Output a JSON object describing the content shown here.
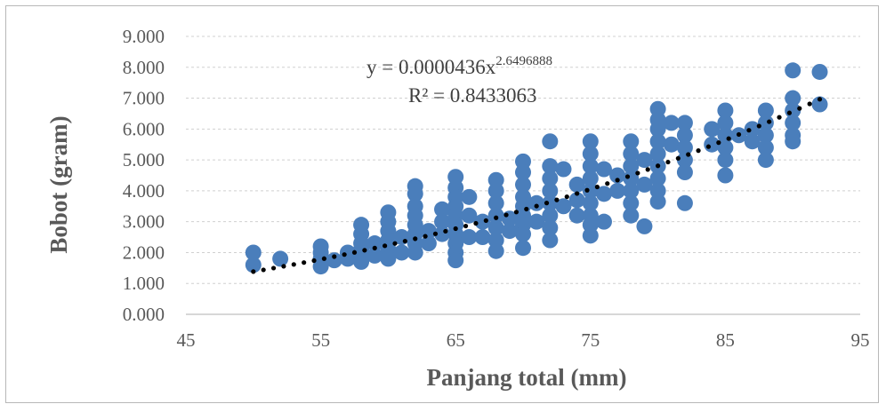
{
  "chart_data": {
    "type": "scatter",
    "title": "",
    "xlabel": "Panjang total (mm)",
    "ylabel": "Bobot (gram)",
    "xlim": [
      45,
      95
    ],
    "ylim": [
      0,
      9
    ],
    "x_ticks": [
      45,
      55,
      65,
      75,
      85,
      95
    ],
    "x_tick_labels": [
      "45",
      "55",
      "65",
      "75",
      "85",
      "95"
    ],
    "y_ticks": [
      0,
      1,
      2,
      3,
      4,
      5,
      6,
      7,
      8,
      9
    ],
    "y_tick_labels": [
      "0.000",
      "1.000",
      "2.000",
      "3.000",
      "4.000",
      "5.000",
      "6.000",
      "7.000",
      "8.000",
      "9.000"
    ],
    "grid": "horizontal-dashed",
    "legend": "none",
    "marker_color": "#4a7ebb",
    "trendline_color": "#000000",
    "trendline": {
      "type": "power",
      "coefficient": 4.36e-05,
      "exponent": 2.6496888,
      "x_range": [
        50,
        92
      ],
      "equation_label": "y = 0.0000436x",
      "equation_exponent": "2.6496888",
      "r2_label": "R² = 0.8433063"
    },
    "points": [
      [
        50,
        2.0
      ],
      [
        50,
        1.6
      ],
      [
        52,
        1.8
      ],
      [
        55,
        2.2
      ],
      [
        55,
        2.0
      ],
      [
        55,
        1.8
      ],
      [
        55,
        1.55
      ],
      [
        56,
        1.75
      ],
      [
        57,
        1.8
      ],
      [
        57,
        2.0
      ],
      [
        58,
        2.9
      ],
      [
        58,
        2.6
      ],
      [
        58,
        2.3
      ],
      [
        58,
        2.1
      ],
      [
        58,
        1.9
      ],
      [
        58,
        1.7
      ],
      [
        59,
        2.3
      ],
      [
        59,
        1.9
      ],
      [
        60,
        3.3
      ],
      [
        60,
        3.0
      ],
      [
        60,
        2.7
      ],
      [
        60,
        2.4
      ],
      [
        60,
        2.1
      ],
      [
        60,
        1.8
      ],
      [
        61,
        2.5
      ],
      [
        61,
        2.0
      ],
      [
        62,
        4.15
      ],
      [
        62,
        3.9
      ],
      [
        62,
        3.5
      ],
      [
        62,
        3.2
      ],
      [
        62,
        2.9
      ],
      [
        62,
        2.6
      ],
      [
        62,
        2.3
      ],
      [
        62,
        2.0
      ],
      [
        63,
        2.7
      ],
      [
        63,
        2.3
      ],
      [
        64,
        3.4
      ],
      [
        64,
        3.0
      ],
      [
        64,
        2.6
      ],
      [
        65,
        4.45
      ],
      [
        65,
        4.1
      ],
      [
        65,
        3.8
      ],
      [
        65,
        3.5
      ],
      [
        65,
        3.2
      ],
      [
        65,
        2.9
      ],
      [
        65,
        2.6
      ],
      [
        65,
        2.3
      ],
      [
        65,
        2.0
      ],
      [
        65,
        1.75
      ],
      [
        66,
        3.8
      ],
      [
        66,
        3.2
      ],
      [
        66,
        2.5
      ],
      [
        67,
        3.0
      ],
      [
        67,
        2.5
      ],
      [
        68,
        4.35
      ],
      [
        68,
        4.0
      ],
      [
        68,
        3.6
      ],
      [
        68,
        3.2
      ],
      [
        68,
        2.8
      ],
      [
        68,
        2.4
      ],
      [
        68,
        2.05
      ],
      [
        69,
        3.1
      ],
      [
        69,
        2.7
      ],
      [
        70,
        4.95
      ],
      [
        70,
        4.6
      ],
      [
        70,
        4.2
      ],
      [
        70,
        3.8
      ],
      [
        70,
        3.5
      ],
      [
        70,
        3.2
      ],
      [
        70,
        2.9
      ],
      [
        70,
        2.6
      ],
      [
        70,
        2.15
      ],
      [
        71,
        3.6
      ],
      [
        71,
        3.0
      ],
      [
        72,
        5.6
      ],
      [
        72,
        4.8
      ],
      [
        72,
        4.4
      ],
      [
        72,
        4.0
      ],
      [
        72,
        3.6
      ],
      [
        72,
        3.2
      ],
      [
        72,
        2.8
      ],
      [
        72,
        2.4
      ],
      [
        73,
        4.7
      ],
      [
        73,
        3.5
      ],
      [
        74,
        4.2
      ],
      [
        74,
        3.7
      ],
      [
        74,
        3.2
      ],
      [
        75,
        5.6
      ],
      [
        75,
        5.2
      ],
      [
        75,
        4.8
      ],
      [
        75,
        4.4
      ],
      [
        75,
        4.0
      ],
      [
        75,
        3.6
      ],
      [
        75,
        3.2
      ],
      [
        75,
        2.9
      ],
      [
        75,
        2.55
      ],
      [
        76,
        4.7
      ],
      [
        76,
        3.9
      ],
      [
        76,
        3.0
      ],
      [
        77,
        4.5
      ],
      [
        77,
        4.0
      ],
      [
        78,
        5.6
      ],
      [
        78,
        5.2
      ],
      [
        78,
        4.8
      ],
      [
        78,
        4.4
      ],
      [
        78,
        4.0
      ],
      [
        78,
        3.6
      ],
      [
        78,
        3.2
      ],
      [
        79,
        5.0
      ],
      [
        79,
        4.2
      ],
      [
        79,
        2.85
      ],
      [
        80,
        6.65
      ],
      [
        80,
        6.3
      ],
      [
        80,
        6.0
      ],
      [
        80,
        5.6
      ],
      [
        80,
        5.2
      ],
      [
        80,
        4.8
      ],
      [
        80,
        4.4
      ],
      [
        80,
        4.0
      ],
      [
        80,
        3.65
      ],
      [
        81,
        6.2
      ],
      [
        81,
        5.5
      ],
      [
        82,
        6.2
      ],
      [
        82,
        5.8
      ],
      [
        82,
        5.4
      ],
      [
        82,
        5.0
      ],
      [
        82,
        4.6
      ],
      [
        82,
        3.6
      ],
      [
        84,
        6.0
      ],
      [
        84,
        5.5
      ],
      [
        85,
        6.6
      ],
      [
        85,
        6.2
      ],
      [
        85,
        5.8
      ],
      [
        85,
        5.4
      ],
      [
        85,
        5.0
      ],
      [
        85,
        4.5
      ],
      [
        86,
        5.8
      ],
      [
        87,
        6.0
      ],
      [
        87,
        5.6
      ],
      [
        88,
        6.6
      ],
      [
        88,
        6.2
      ],
      [
        88,
        5.8
      ],
      [
        88,
        5.4
      ],
      [
        88,
        5.0
      ],
      [
        90,
        7.9
      ],
      [
        90,
        7.0
      ],
      [
        90,
        6.6
      ],
      [
        90,
        6.2
      ],
      [
        90,
        5.8
      ],
      [
        90,
        5.6
      ],
      [
        92,
        7.85
      ],
      [
        92,
        6.8
      ]
    ]
  }
}
